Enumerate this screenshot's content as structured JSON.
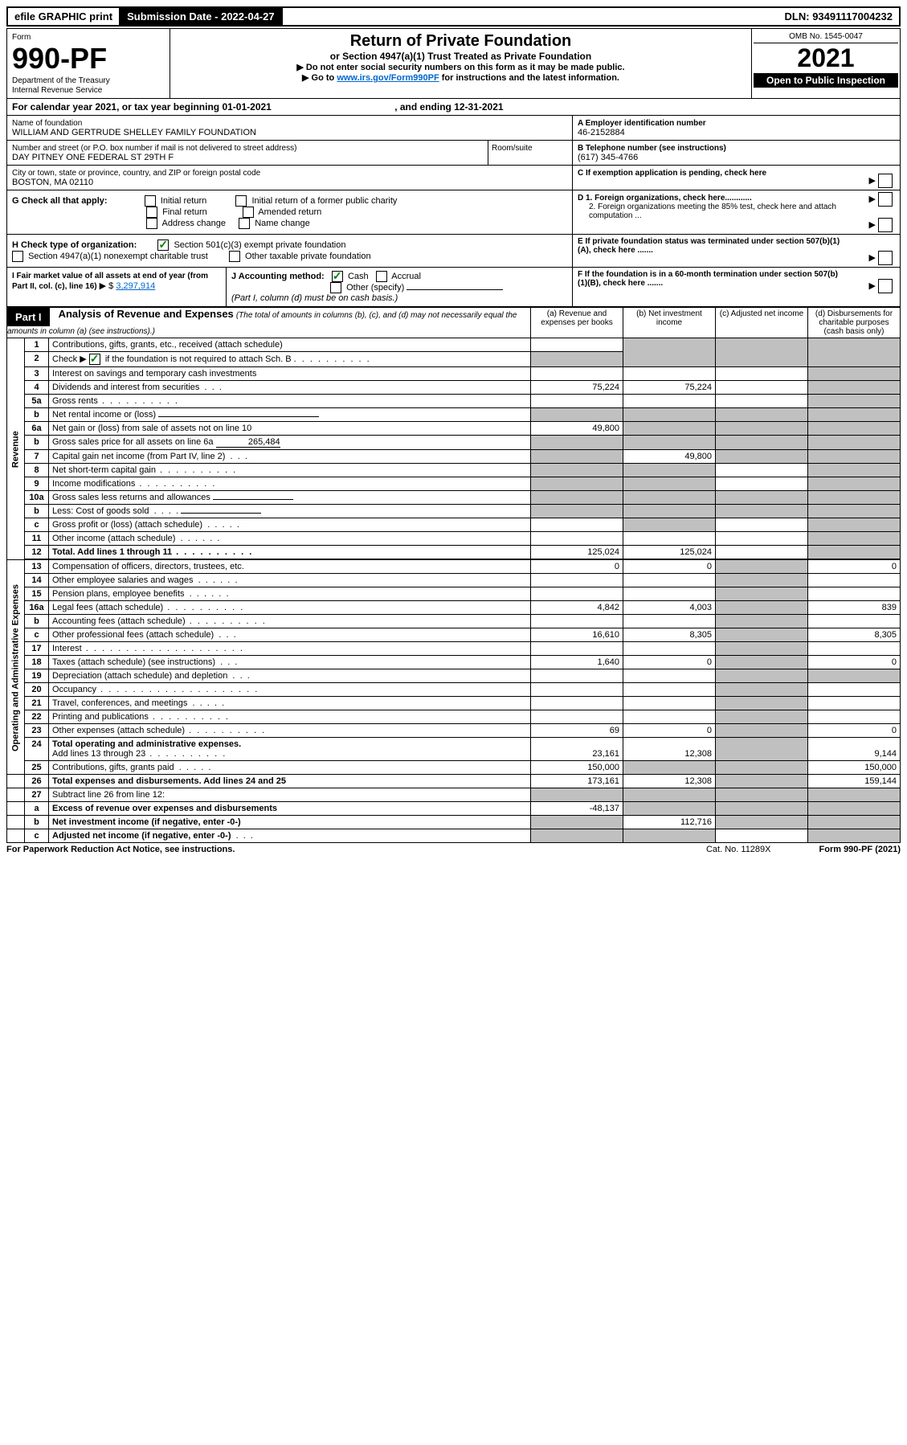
{
  "top_bar": {
    "efile": "efile GRAPHIC print",
    "submission_label": "Submission Date - 2022-04-27",
    "dln": "DLN: 93491117004232"
  },
  "header": {
    "form_word": "Form",
    "form_number": "990-PF",
    "dept": "Department of the Treasury",
    "irs": "Internal Revenue Service",
    "title": "Return of Private Foundation",
    "subtitle": "or Section 4947(a)(1) Trust Treated as Private Foundation",
    "instr1": "▶ Do not enter social security numbers on this form as it may be made public.",
    "instr2_pre": "▶ Go to ",
    "instr2_link": "www.irs.gov/Form990PF",
    "instr2_post": " for instructions and the latest information.",
    "omb": "OMB No. 1545-0047",
    "year": "2021",
    "open": "Open to Public Inspection"
  },
  "calendar_line": {
    "text_pre": "For calendar year 2021, or tax year beginning ",
    "begin": "01-01-2021",
    "text_mid": ", and ending ",
    "end": "12-31-2021"
  },
  "entity": {
    "name_label": "Name of foundation",
    "name": "WILLIAM AND GERTRUDE SHELLEY FAMILY FOUNDATION",
    "addr_label": "Number and street (or P.O. box number if mail is not delivered to street address)",
    "addr": "DAY PITNEY ONE FEDERAL ST 29TH F",
    "room_label": "Room/suite",
    "city_label": "City or town, state or province, country, and ZIP or foreign postal code",
    "city": "BOSTON, MA  02110",
    "ein_label": "A Employer identification number",
    "ein": "46-2152884",
    "phone_label": "B Telephone number (see instructions)",
    "phone": "(617) 345-4766",
    "c_label": "C If exemption application is pending, check here",
    "d1_label": "D 1. Foreign organizations, check here............",
    "d2_label": "2. Foreign organizations meeting the 85% test, check here and attach computation ...",
    "e_label": "E If private foundation status was terminated under section 507(b)(1)(A), check here .......",
    "f_label": "F If the foundation is in a 60-month termination under section 507(b)(1)(B), check here .......",
    "g_label": "G Check all that apply:",
    "g_opts": [
      "Initial return",
      "Initial return of a former public charity",
      "Final return",
      "Amended return",
      "Address change",
      "Name change"
    ],
    "h_label": "H Check type of organization:",
    "h_opt1": "Section 501(c)(3) exempt private foundation",
    "h_opt2": "Section 4947(a)(1) nonexempt charitable trust",
    "h_opt3": "Other taxable private foundation",
    "i_label": "I Fair market value of all assets at end of year (from Part II, col. (c), line 16)",
    "i_value": "3,297,914",
    "j_label": "J Accounting method:",
    "j_cash": "Cash",
    "j_accrual": "Accrual",
    "j_other": "Other (specify)",
    "j_note": "(Part I, column (d) must be on cash basis.)"
  },
  "part1": {
    "label": "Part I",
    "title": "Analysis of Revenue and Expenses",
    "title_note": "(The total of amounts in columns (b), (c), and (d) may not necessarily equal the amounts in column (a) (see instructions).)",
    "col_a": "(a) Revenue and expenses per books",
    "col_b": "(b) Net investment income",
    "col_c": "(c) Adjusted net income",
    "col_d": "(d) Disbursements for charitable purposes (cash basis only)",
    "side_revenue": "Revenue",
    "side_expenses": "Operating and Administrative Expenses"
  },
  "rows": {
    "r1": {
      "num": "1",
      "desc": "Contributions, gifts, grants, etc., received (attach schedule)"
    },
    "r2": {
      "num": "2",
      "desc_pre": "Check ▶",
      "desc_post": " if the foundation is not required to attach Sch. B"
    },
    "r3": {
      "num": "3",
      "desc": "Interest on savings and temporary cash investments"
    },
    "r4": {
      "num": "4",
      "desc": "Dividends and interest from securities",
      "a": "75,224",
      "b": "75,224"
    },
    "r5a": {
      "num": "5a",
      "desc": "Gross rents"
    },
    "r5b": {
      "num": "b",
      "desc": "Net rental income or (loss)"
    },
    "r6a": {
      "num": "6a",
      "desc": "Net gain or (loss) from sale of assets not on line 10",
      "a": "49,800"
    },
    "r6b": {
      "num": "b",
      "desc": "Gross sales price for all assets on line 6a",
      "val": "265,484"
    },
    "r7": {
      "num": "7",
      "desc": "Capital gain net income (from Part IV, line 2)",
      "b": "49,800"
    },
    "r8": {
      "num": "8",
      "desc": "Net short-term capital gain"
    },
    "r9": {
      "num": "9",
      "desc": "Income modifications"
    },
    "r10a": {
      "num": "10a",
      "desc": "Gross sales less returns and allowances"
    },
    "r10b": {
      "num": "b",
      "desc": "Less: Cost of goods sold"
    },
    "r10c": {
      "num": "c",
      "desc": "Gross profit or (loss) (attach schedule)"
    },
    "r11": {
      "num": "11",
      "desc": "Other income (attach schedule)"
    },
    "r12": {
      "num": "12",
      "desc": "Total. Add lines 1 through 11",
      "a": "125,024",
      "b": "125,024"
    },
    "r13": {
      "num": "13",
      "desc": "Compensation of officers, directors, trustees, etc.",
      "a": "0",
      "b": "0",
      "d": "0"
    },
    "r14": {
      "num": "14",
      "desc": "Other employee salaries and wages"
    },
    "r15": {
      "num": "15",
      "desc": "Pension plans, employee benefits"
    },
    "r16a": {
      "num": "16a",
      "desc": "Legal fees (attach schedule)",
      "a": "4,842",
      "b": "4,003",
      "d": "839"
    },
    "r16b": {
      "num": "b",
      "desc": "Accounting fees (attach schedule)"
    },
    "r16c": {
      "num": "c",
      "desc": "Other professional fees (attach schedule)",
      "a": "16,610",
      "b": "8,305",
      "d": "8,305"
    },
    "r17": {
      "num": "17",
      "desc": "Interest"
    },
    "r18": {
      "num": "18",
      "desc": "Taxes (attach schedule) (see instructions)",
      "a": "1,640",
      "b": "0",
      "d": "0"
    },
    "r19": {
      "num": "19",
      "desc": "Depreciation (attach schedule) and depletion"
    },
    "r20": {
      "num": "20",
      "desc": "Occupancy"
    },
    "r21": {
      "num": "21",
      "desc": "Travel, conferences, and meetings"
    },
    "r22": {
      "num": "22",
      "desc": "Printing and publications"
    },
    "r23": {
      "num": "23",
      "desc": "Other expenses (attach schedule)",
      "a": "69",
      "b": "0",
      "d": "0"
    },
    "r24": {
      "num": "24",
      "desc": "Total operating and administrative expenses.",
      "desc2": "Add lines 13 through 23",
      "a": "23,161",
      "b": "12,308",
      "d": "9,144"
    },
    "r25": {
      "num": "25",
      "desc": "Contributions, gifts, grants paid",
      "a": "150,000",
      "d": "150,000"
    },
    "r26": {
      "num": "26",
      "desc": "Total expenses and disbursements. Add lines 24 and 25",
      "a": "173,161",
      "b": "12,308",
      "d": "159,144"
    },
    "r27": {
      "num": "27",
      "desc": "Subtract line 26 from line 12:"
    },
    "r27a": {
      "num": "a",
      "desc": "Excess of revenue over expenses and disbursements",
      "a": "-48,137"
    },
    "r27b": {
      "num": "b",
      "desc": "Net investment income (if negative, enter -0-)",
      "b": "112,716"
    },
    "r27c": {
      "num": "c",
      "desc": "Adjusted net income (if negative, enter -0-)"
    }
  },
  "footer": {
    "left": "For Paperwork Reduction Act Notice, see instructions.",
    "center": "Cat. No. 11289X",
    "right": "Form 990-PF (2021)"
  }
}
